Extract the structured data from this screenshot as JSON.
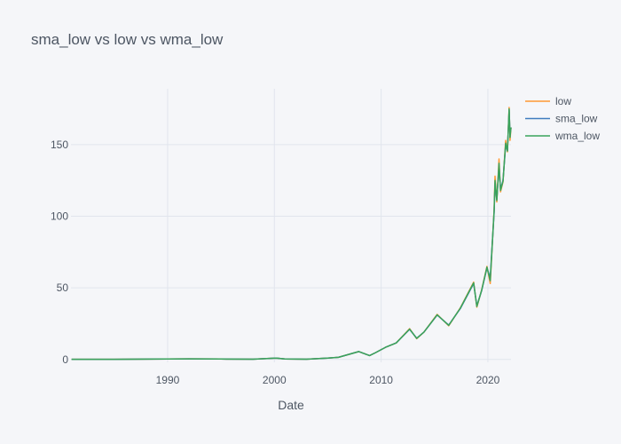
{
  "chart_data": {
    "type": "line",
    "title": "sma_low vs low vs wma_low",
    "xlabel": "Date",
    "ylabel": "",
    "xlim": [
      "1980-12-12",
      "2022-03-01"
    ],
    "ylim": [
      -2,
      189
    ],
    "x_ticks": [
      "1990",
      "2000",
      "2010",
      "2020"
    ],
    "y_ticks": [
      "0",
      "50",
      "100",
      "150"
    ],
    "grid": true,
    "legend_position": "top-right",
    "colors": {
      "low": "#ff9933",
      "sma_low": "#3f7cbf",
      "wma_low": "#3aa35b"
    },
    "x": [
      "1981-01-01",
      "1985-01-01",
      "1990-01-01",
      "1992-01-01",
      "1995-01-01",
      "1998-01-01",
      "2000-03-01",
      "2001-01-01",
      "2003-01-01",
      "2005-01-01",
      "2006-01-01",
      "2007-12-01",
      "2008-12-01",
      "2009-06-01",
      "2010-06-01",
      "2011-06-01",
      "2012-09-01",
      "2013-05-01",
      "2014-01-01",
      "2015-04-01",
      "2016-05-01",
      "2017-06-01",
      "2018-09-01",
      "2018-12-20",
      "2019-06-01",
      "2019-12-01",
      "2020-03-20",
      "2020-08-01",
      "2020-09-01",
      "2020-11-01",
      "2021-01-15",
      "2021-03-08",
      "2021-06-01",
      "2021-09-01",
      "2021-11-01",
      "2021-12-28",
      "2022-01-28",
      "2022-03-01"
    ],
    "series": [
      {
        "name": "low",
        "values": [
          0.1,
          0.1,
          0.3,
          0.4,
          0.3,
          0.2,
          0.9,
          0.3,
          0.2,
          0.9,
          1.5,
          5.5,
          2.7,
          4.5,
          8.5,
          11.5,
          21.5,
          14.5,
          19.0,
          31.5,
          23.5,
          36.0,
          54.0,
          36.5,
          48.5,
          65.0,
          53.0,
          105.0,
          128.0,
          110.0,
          140.0,
          117.0,
          124.0,
          153.0,
          145.0,
          176.0,
          153.0,
          162.0
        ]
      },
      {
        "name": "sma_low",
        "values": [
          0.1,
          0.1,
          0.3,
          0.4,
          0.3,
          0.2,
          0.9,
          0.3,
          0.2,
          0.9,
          1.5,
          5.5,
          2.7,
          4.5,
          8.5,
          11.5,
          21.0,
          14.8,
          19.0,
          31.0,
          24.0,
          35.5,
          53.0,
          37.5,
          48.0,
          64.0,
          57.0,
          103.0,
          123.0,
          112.0,
          135.0,
          119.0,
          125.0,
          150.0,
          146.0,
          174.0,
          157.0,
          162.0
        ]
      },
      {
        "name": "wma_low",
        "values": [
          0.1,
          0.1,
          0.3,
          0.4,
          0.3,
          0.2,
          0.9,
          0.3,
          0.2,
          0.9,
          1.5,
          5.5,
          2.7,
          4.5,
          8.5,
          11.5,
          21.2,
          14.7,
          19.0,
          31.2,
          23.8,
          35.8,
          53.5,
          37.0,
          48.2,
          64.5,
          55.0,
          104.0,
          125.0,
          111.0,
          137.0,
          118.0,
          124.5,
          151.0,
          145.5,
          175.0,
          155.0,
          162.0
        ]
      }
    ]
  }
}
